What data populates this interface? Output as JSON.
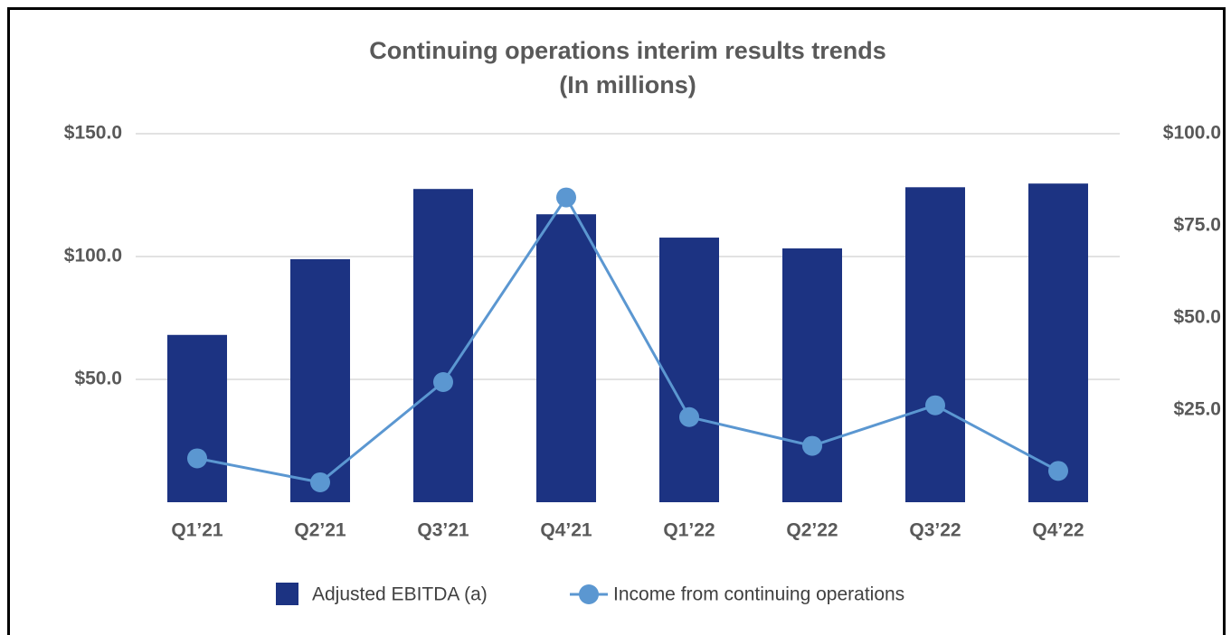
{
  "chart_data": {
    "type": "bar_line",
    "title": "Continuing operations interim results trends",
    "subtitle": "(In millions)",
    "categories": [
      "Q1’21",
      "Q2’21",
      "Q3’21",
      "Q4’21",
      "Q1’22",
      "Q2’22",
      "Q3’22",
      "Q4’22"
    ],
    "series": [
      {
        "name": "Adjusted EBITDA (a)",
        "color": "#1c3382",
        "type": "bar",
        "axis": "y",
        "values": [
          68.1,
          98.9,
          127.5,
          117.2,
          107.7,
          103.3,
          128.2,
          129.7
        ]
      },
      {
        "name": "Income from continuing operations",
        "color": "#5b97d1",
        "type": "line",
        "axis": "y2",
        "values": [
          11.9,
          5.4,
          32.6,
          82.7,
          23.1,
          15.3,
          26.3,
          8.5
        ]
      }
    ],
    "ylim": [
      0,
      150
    ],
    "yticks": [
      {
        "value": 50,
        "label": "$50.0"
      },
      {
        "value": 100,
        "label": "$100.0"
      },
      {
        "value": 150,
        "label": "$150.0"
      }
    ],
    "y2lim": [
      0,
      100
    ],
    "y2ticks": [
      {
        "value": 25,
        "label": "$25.0"
      },
      {
        "value": 50,
        "label": "$50.0"
      },
      {
        "value": 75,
        "label": "$75.0"
      },
      {
        "value": 100,
        "label": "$100.0"
      }
    ],
    "grid": true,
    "legend": "bottom"
  }
}
